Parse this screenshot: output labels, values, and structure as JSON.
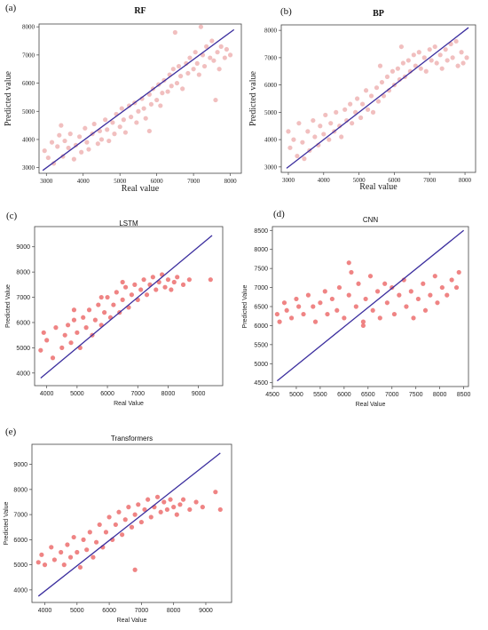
{
  "figure": {
    "panels": [
      "(a)",
      "(b)",
      "(c)",
      "(d)",
      "(e)"
    ]
  },
  "chart_data": [
    {
      "panel": "(a)",
      "type": "scatter",
      "title": "RF",
      "xlabel": "Real value",
      "ylabel": "Predicted value",
      "xlim": [
        2800,
        8300
      ],
      "ylim": [
        2800,
        8100
      ],
      "xticks": [
        3000,
        4000,
        5000,
        6000,
        7000,
        8000
      ],
      "yticks": [
        3000,
        4000,
        5000,
        6000,
        7000,
        8000
      ],
      "point_color": "#eeb4b4",
      "line_color": "#3b2e9e",
      "reference_line": [
        [
          2900,
          2900
        ],
        [
          8100,
          7900
        ]
      ],
      "points": [
        [
          2950,
          3600
        ],
        [
          3050,
          3350
        ],
        [
          3150,
          3900
        ],
        [
          3200,
          3150
        ],
        [
          3300,
          3750
        ],
        [
          3350,
          4150
        ],
        [
          3450,
          3400
        ],
        [
          3500,
          3950
        ],
        [
          3600,
          3700
        ],
        [
          3650,
          4200
        ],
        [
          3750,
          3300
        ],
        [
          3800,
          3800
        ],
        [
          3900,
          4100
        ],
        [
          3950,
          3550
        ],
        [
          4050,
          4400
        ],
        [
          4100,
          3900
        ],
        [
          4150,
          3650
        ],
        [
          4250,
          4200
        ],
        [
          4300,
          4550
        ],
        [
          4400,
          3850
        ],
        [
          4450,
          4300
        ],
        [
          4500,
          4000
        ],
        [
          4600,
          4700
        ],
        [
          4650,
          4350
        ],
        [
          4700,
          3950
        ],
        [
          4800,
          4600
        ],
        [
          4850,
          4200
        ],
        [
          4900,
          4900
        ],
        [
          5000,
          4450
        ],
        [
          5050,
          5100
        ],
        [
          5100,
          4700
        ],
        [
          5150,
          4250
        ],
        [
          5250,
          5200
        ],
        [
          5300,
          4800
        ],
        [
          5400,
          5300
        ],
        [
          5450,
          4600
        ],
        [
          5500,
          5000
        ],
        [
          5600,
          5450
        ],
        [
          5650,
          5100
        ],
        [
          5700,
          4750
        ],
        [
          5800,
          5600
        ],
        [
          5850,
          5250
        ],
        [
          5900,
          5800
        ],
        [
          6000,
          5400
        ],
        [
          6050,
          5950
        ],
        [
          6100,
          5200
        ],
        [
          6150,
          5650
        ],
        [
          6200,
          6100
        ],
        [
          6300,
          5700
        ],
        [
          6350,
          6300
        ],
        [
          6400,
          5900
        ],
        [
          6450,
          6500
        ],
        [
          6550,
          6000
        ],
        [
          6600,
          6600
        ],
        [
          6650,
          6250
        ],
        [
          6700,
          5800
        ],
        [
          6800,
          6700
        ],
        [
          6850,
          6350
        ],
        [
          6900,
          6900
        ],
        [
          7000,
          6500
        ],
        [
          7050,
          7100
        ],
        [
          7100,
          6700
        ],
        [
          7150,
          6300
        ],
        [
          7250,
          7000
        ],
        [
          7300,
          6600
        ],
        [
          7350,
          7300
        ],
        [
          7450,
          6900
        ],
        [
          7500,
          7500
        ],
        [
          7550,
          6800
        ],
        [
          7650,
          7100
        ],
        [
          7700,
          6500
        ],
        [
          7750,
          7300
        ],
        [
          7850,
          6900
        ],
        [
          7900,
          7200
        ],
        [
          8000,
          7000
        ],
        [
          7200,
          8000
        ],
        [
          7600,
          5400
        ],
        [
          6500,
          7800
        ],
        [
          3400,
          4500
        ],
        [
          5800,
          4300
        ]
      ]
    },
    {
      "panel": "(b)",
      "type": "scatter",
      "title": "BP",
      "xlabel": "Real value",
      "ylabel": "Predicted value",
      "xlim": [
        2800,
        8300
      ],
      "ylim": [
        2800,
        8200
      ],
      "xticks": [
        3000,
        4000,
        5000,
        6000,
        7000,
        8000
      ],
      "yticks": [
        3000,
        4000,
        5000,
        6000,
        7000,
        8000
      ],
      "point_color": "#eeb4b4",
      "line_color": "#3b2e9e",
      "reference_line": [
        [
          2950,
          2950
        ],
        [
          8100,
          8100
        ]
      ],
      "points": [
        [
          3000,
          4300
        ],
        [
          3050,
          3700
        ],
        [
          3150,
          4000
        ],
        [
          3250,
          3400
        ],
        [
          3300,
          4600
        ],
        [
          3400,
          3900
        ],
        [
          3450,
          3300
        ],
        [
          3550,
          4300
        ],
        [
          3600,
          3600
        ],
        [
          3700,
          4700
        ],
        [
          3750,
          4100
        ],
        [
          3850,
          3800
        ],
        [
          3900,
          4500
        ],
        [
          4000,
          4200
        ],
        [
          4050,
          4900
        ],
        [
          4150,
          4000
        ],
        [
          4200,
          4600
        ],
        [
          4300,
          4300
        ],
        [
          4350,
          5000
        ],
        [
          4450,
          4500
        ],
        [
          4500,
          4100
        ],
        [
          4600,
          5100
        ],
        [
          4650,
          4700
        ],
        [
          4750,
          5300
        ],
        [
          4800,
          4600
        ],
        [
          4900,
          5000
        ],
        [
          4950,
          5500
        ],
        [
          5050,
          4800
        ],
        [
          5100,
          5300
        ],
        [
          5200,
          5800
        ],
        [
          5250,
          5100
        ],
        [
          5350,
          5600
        ],
        [
          5400,
          5000
        ],
        [
          5500,
          5900
        ],
        [
          5550,
          5400
        ],
        [
          5650,
          6100
        ],
        [
          5700,
          5600
        ],
        [
          5800,
          6300
        ],
        [
          5850,
          5800
        ],
        [
          5950,
          6500
        ],
        [
          6000,
          6000
        ],
        [
          6100,
          6600
        ],
        [
          6150,
          6200
        ],
        [
          6250,
          6800
        ],
        [
          6300,
          6300
        ],
        [
          6400,
          6900
        ],
        [
          6450,
          6500
        ],
        [
          6550,
          7100
        ],
        [
          6600,
          6700
        ],
        [
          6700,
          7200
        ],
        [
          6750,
          6600
        ],
        [
          6850,
          7000
        ],
        [
          6900,
          6500
        ],
        [
          7000,
          7300
        ],
        [
          7050,
          6900
        ],
        [
          7150,
          7400
        ],
        [
          7200,
          6800
        ],
        [
          7300,
          7100
        ],
        [
          7350,
          6600
        ],
        [
          7450,
          7300
        ],
        [
          7500,
          6900
        ],
        [
          7600,
          7500
        ],
        [
          7650,
          7000
        ],
        [
          7750,
          7600
        ],
        [
          7800,
          6700
        ],
        [
          7900,
          7200
        ],
        [
          7950,
          6800
        ],
        [
          8050,
          7000
        ],
        [
          6200,
          7400
        ],
        [
          5600,
          6700
        ]
      ]
    },
    {
      "panel": "(c)",
      "type": "scatter",
      "title": "LSTM",
      "xlabel": "Real Value",
      "ylabel": "Predicted Value",
      "xlim": [
        3600,
        9800
      ],
      "ylim": [
        3500,
        9800
      ],
      "xticks": [
        4000,
        5000,
        6000,
        7000,
        8000,
        9000
      ],
      "yticks": [
        4000,
        5000,
        6000,
        7000,
        8000,
        9000
      ],
      "point_color": "#ec6e6e",
      "line_color": "#3b2e9e",
      "reference_line": [
        [
          3800,
          3800
        ],
        [
          9450,
          9450
        ]
      ],
      "points": [
        [
          3800,
          4900
        ],
        [
          3900,
          5600
        ],
        [
          4000,
          5300
        ],
        [
          4200,
          4600
        ],
        [
          4300,
          5800
        ],
        [
          4500,
          5000
        ],
        [
          4600,
          5500
        ],
        [
          4700,
          5900
        ],
        [
          4800,
          5200
        ],
        [
          4900,
          6100
        ],
        [
          5000,
          5600
        ],
        [
          5100,
          5000
        ],
        [
          5200,
          6200
        ],
        [
          5300,
          5800
        ],
        [
          5400,
          6500
        ],
        [
          5500,
          5500
        ],
        [
          5600,
          6100
        ],
        [
          5700,
          6700
        ],
        [
          5800,
          5900
        ],
        [
          5900,
          6400
        ],
        [
          6000,
          7000
        ],
        [
          6100,
          6200
        ],
        [
          6200,
          6700
        ],
        [
          6300,
          7200
        ],
        [
          6400,
          6400
        ],
        [
          6500,
          6900
        ],
        [
          6600,
          7400
        ],
        [
          6700,
          6600
        ],
        [
          6800,
          7100
        ],
        [
          6900,
          7500
        ],
        [
          7000,
          6900
        ],
        [
          7100,
          7300
        ],
        [
          7200,
          7700
        ],
        [
          7300,
          7100
        ],
        [
          7400,
          7500
        ],
        [
          7500,
          7800
        ],
        [
          7600,
          7300
        ],
        [
          7700,
          7600
        ],
        [
          7800,
          7900
        ],
        [
          7900,
          7400
        ],
        [
          8000,
          7700
        ],
        [
          8100,
          7300
        ],
        [
          8200,
          7600
        ],
        [
          8300,
          7800
        ],
        [
          8500,
          7500
        ],
        [
          8700,
          7700
        ],
        [
          9400,
          7700
        ],
        [
          6500,
          7600
        ],
        [
          5800,
          7000
        ],
        [
          4900,
          6500
        ]
      ]
    },
    {
      "panel": "(d)",
      "type": "scatter",
      "title": "CNN",
      "xlabel": "Real Value",
      "ylabel": "Predicted Value",
      "xlim": [
        4500,
        8600
      ],
      "ylim": [
        4400,
        8600
      ],
      "xticks": [
        4500,
        5000,
        5500,
        6000,
        6500,
        7000,
        7500,
        8000,
        8500
      ],
      "yticks": [
        4500,
        5000,
        5500,
        6000,
        6500,
        7000,
        7500,
        8000,
        8500
      ],
      "point_color": "#ec6e6e",
      "line_color": "#3b2e9e",
      "reference_line": [
        [
          4600,
          4550
        ],
        [
          8500,
          8500
        ]
      ],
      "points": [
        [
          4600,
          6300
        ],
        [
          4650,
          6100
        ],
        [
          4750,
          6600
        ],
        [
          4800,
          6400
        ],
        [
          4900,
          6200
        ],
        [
          5000,
          6700
        ],
        [
          5050,
          6500
        ],
        [
          5150,
          6300
        ],
        [
          5250,
          6800
        ],
        [
          5350,
          6500
        ],
        [
          5400,
          6100
        ],
        [
          5500,
          6600
        ],
        [
          5600,
          6900
        ],
        [
          5650,
          6300
        ],
        [
          5750,
          6700
        ],
        [
          5850,
          6400
        ],
        [
          5900,
          7000
        ],
        [
          6000,
          6200
        ],
        [
          6100,
          6800
        ],
        [
          6150,
          7400
        ],
        [
          6250,
          6500
        ],
        [
          6300,
          7100
        ],
        [
          6400,
          6100
        ],
        [
          6450,
          6700
        ],
        [
          6550,
          7300
        ],
        [
          6600,
          6400
        ],
        [
          6700,
          6900
        ],
        [
          6750,
          6200
        ],
        [
          6850,
          7100
        ],
        [
          6900,
          6600
        ],
        [
          7000,
          7000
        ],
        [
          7050,
          6300
        ],
        [
          7150,
          6800
        ],
        [
          7250,
          7200
        ],
        [
          7300,
          6500
        ],
        [
          7400,
          6900
        ],
        [
          7450,
          6200
        ],
        [
          7550,
          6700
        ],
        [
          7650,
          7100
        ],
        [
          7700,
          6400
        ],
        [
          7800,
          6800
        ],
        [
          7900,
          7300
        ],
        [
          7950,
          6600
        ],
        [
          8050,
          7000
        ],
        [
          8150,
          6800
        ],
        [
          8250,
          7200
        ],
        [
          8350,
          7000
        ],
        [
          8400,
          7400
        ],
        [
          6100,
          7650
        ],
        [
          6400,
          6000
        ]
      ]
    },
    {
      "panel": "(e)",
      "type": "scatter",
      "title": "Transformers",
      "xlabel": "Real Value",
      "ylabel": "Predicted Value",
      "xlim": [
        3600,
        9800
      ],
      "ylim": [
        3500,
        9800
      ],
      "xticks": [
        4000,
        5000,
        6000,
        7000,
        8000,
        9000
      ],
      "yticks": [
        4000,
        5000,
        6000,
        7000,
        8000,
        9000
      ],
      "point_color": "#ec6e6e",
      "line_color": "#3b2e9e",
      "reference_line": [
        [
          3800,
          3750
        ],
        [
          9450,
          9450
        ]
      ],
      "points": [
        [
          3800,
          5100
        ],
        [
          3900,
          5400
        ],
        [
          4000,
          5000
        ],
        [
          4200,
          5700
        ],
        [
          4300,
          5200
        ],
        [
          4500,
          5500
        ],
        [
          4600,
          5000
        ],
        [
          4700,
          5800
        ],
        [
          4800,
          5300
        ],
        [
          4900,
          6100
        ],
        [
          5000,
          5500
        ],
        [
          5100,
          4900
        ],
        [
          5200,
          6000
        ],
        [
          5300,
          5600
        ],
        [
          5400,
          6300
        ],
        [
          5500,
          5300
        ],
        [
          5600,
          5900
        ],
        [
          5700,
          6600
        ],
        [
          5800,
          5700
        ],
        [
          5900,
          6300
        ],
        [
          6000,
          6900
        ],
        [
          6100,
          6000
        ],
        [
          6200,
          6600
        ],
        [
          6300,
          7100
        ],
        [
          6400,
          6200
        ],
        [
          6500,
          6800
        ],
        [
          6600,
          7300
        ],
        [
          6700,
          6500
        ],
        [
          6800,
          7000
        ],
        [
          6900,
          7400
        ],
        [
          7000,
          6700
        ],
        [
          7100,
          7200
        ],
        [
          7200,
          7600
        ],
        [
          7300,
          6900
        ],
        [
          7400,
          7300
        ],
        [
          7500,
          7700
        ],
        [
          7600,
          7100
        ],
        [
          7700,
          7500
        ],
        [
          7800,
          7200
        ],
        [
          7900,
          7600
        ],
        [
          8000,
          7300
        ],
        [
          8100,
          7000
        ],
        [
          8200,
          7400
        ],
        [
          8300,
          7600
        ],
        [
          8500,
          7200
        ],
        [
          8700,
          7500
        ],
        [
          8900,
          7300
        ],
        [
          9300,
          7900
        ],
        [
          9450,
          7200
        ],
        [
          6800,
          4800
        ]
      ]
    }
  ]
}
